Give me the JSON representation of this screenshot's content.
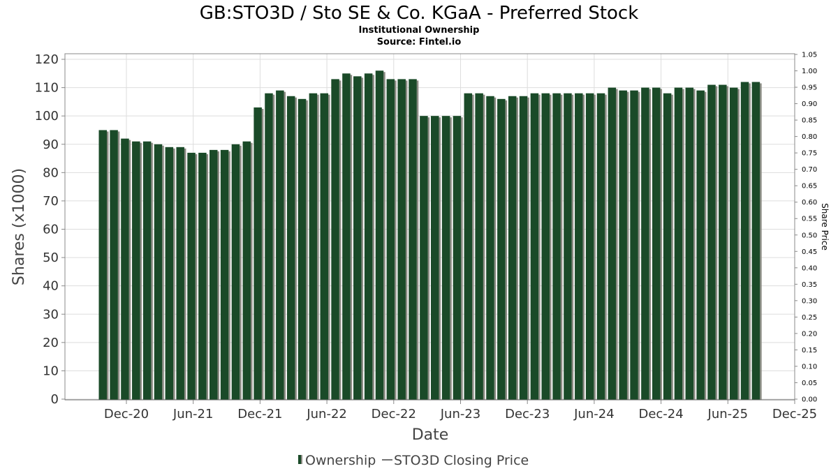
{
  "chart_data": {
    "type": "bar",
    "title": "GB:STO3D / Sto SE & Co. KGaA - Preferred Stock",
    "subtitle": "Institutional Ownership",
    "source": "Source: Fintel.io",
    "xlabel": "Date",
    "ylabel": "Shares (x1000)",
    "y2label": "Share Price",
    "ylim": [
      0,
      120
    ],
    "y2lim": [
      0,
      1.05
    ],
    "yticks": [
      "0",
      "10",
      "20",
      "30",
      "40",
      "50",
      "60",
      "70",
      "80",
      "90",
      "100",
      "110",
      "120"
    ],
    "y2ticks": [
      "0.00",
      "0.05",
      "0.10",
      "0.15",
      "0.20",
      "0.25",
      "0.30",
      "0.35",
      "0.40",
      "0.45",
      "0.50",
      "0.55",
      "0.60",
      "0.65",
      "0.70",
      "0.75",
      "0.80",
      "0.85",
      "0.90",
      "0.95",
      "1.00",
      "1.05"
    ],
    "xticks": [
      "Dec-20",
      "Jun-21",
      "Dec-21",
      "Jun-22",
      "Dec-22",
      "Jun-23",
      "Dec-23",
      "Jun-24",
      "Dec-24",
      "Jun-25",
      "Dec-25"
    ],
    "grid": true,
    "legend_position": "bottom",
    "colors": {
      "bar": "#1a4a28",
      "bar_shadow": "#8a8a82",
      "grid": "#dddddd",
      "axis": "#888888"
    },
    "series": [
      {
        "name": "Ownership",
        "values": [
          95,
          95,
          92,
          91,
          91,
          90,
          89,
          89,
          87,
          87,
          88,
          88,
          90,
          91,
          103,
          108,
          109,
          107,
          106,
          108,
          108,
          113,
          115,
          114,
          115,
          116,
          113,
          113,
          113,
          100,
          100,
          100,
          100,
          108,
          108,
          107,
          106,
          107,
          107,
          108,
          108,
          108,
          108,
          108,
          108,
          108,
          110,
          109,
          109,
          110,
          110,
          108,
          110,
          110,
          109,
          111,
          111,
          110,
          112,
          112
        ]
      },
      {
        "name": "STO3D Closing Price",
        "values": []
      }
    ]
  }
}
